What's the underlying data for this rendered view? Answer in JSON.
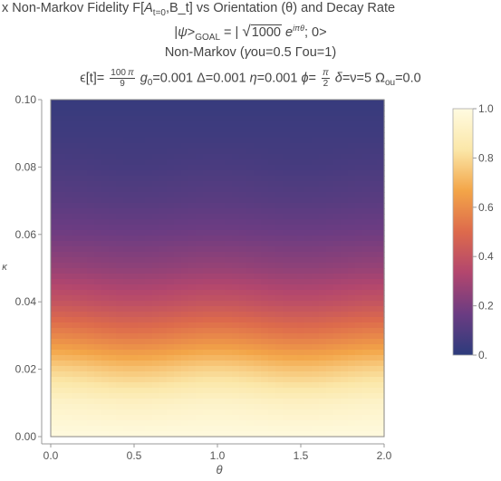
{
  "chart_data": {
    "type": "heatmap",
    "title_lines": [
      "x Non-Markov Fidelity F[A_{t=0},B_t] vs Orientation (θ) and Decay Rate",
      "|ψ>_GOAL = | √1000 e^{iπθ}; 0>",
      "Non-Markov (γou=0.5 Γou=1)",
      "ϵ[t]= 100π/9 g0=0.001 Δ=0.001 η=0.001 ϕ= π/2 δ=ν=5 Ωou=0.0"
    ],
    "xlabel": "θ",
    "ylabel": "κ",
    "xlim": [
      0,
      2
    ],
    "ylim": [
      0,
      0.1
    ],
    "x_ticks": [
      "0.0",
      "0.5",
      "1.0",
      "1.5",
      "2.0"
    ],
    "y_ticks": [
      "0.00",
      "0.02",
      "0.04",
      "0.06",
      "0.08",
      "0.10"
    ],
    "colorbar_range": [
      0,
      1
    ],
    "colorbar_ticks": [
      "0.",
      "0.2",
      "0.4",
      "0.6",
      "0.8",
      "1.0"
    ],
    "colorscale": [
      "#2c3b7c",
      "#6b3c82",
      "#b2466e",
      "#dd6a4c",
      "#f3a548",
      "#fbe7a8",
      "#fffbe1"
    ],
    "fidelity_profile": {
      "kappa": [
        0.0,
        0.01,
        0.02,
        0.03,
        0.04,
        0.05,
        0.06,
        0.07,
        0.08,
        0.09,
        0.1
      ],
      "fidelity_theta_0": [
        0.99,
        0.93,
        0.78,
        0.58,
        0.4,
        0.27,
        0.18,
        0.12,
        0.08,
        0.05,
        0.03
      ],
      "fidelity_theta_0_5": [
        0.99,
        0.91,
        0.74,
        0.54,
        0.37,
        0.25,
        0.17,
        0.11,
        0.07,
        0.05,
        0.03
      ]
    }
  }
}
